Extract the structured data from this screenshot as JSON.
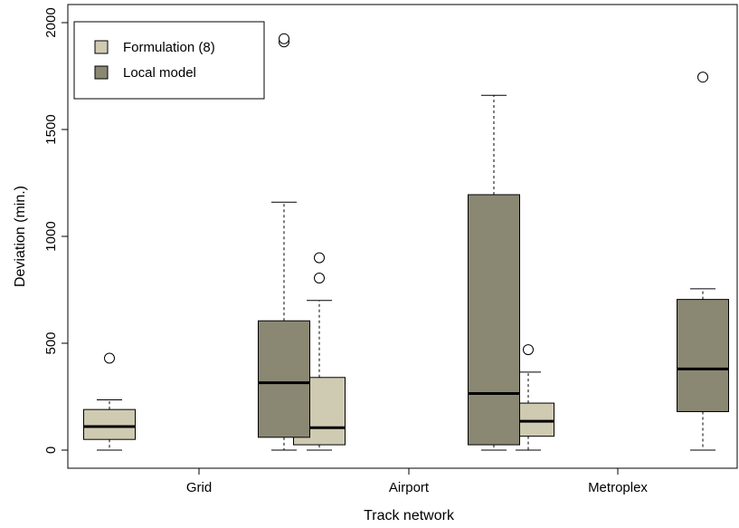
{
  "chart_data": {
    "type": "boxplot",
    "xlabel": "Track network",
    "ylabel": "Deviation (min.)",
    "ylim": [
      -90,
      2050
    ],
    "y_ticks": [
      0,
      500,
      1000,
      1500,
      2000
    ],
    "grid": false,
    "legend_position": "top-left",
    "categories": [
      "Grid",
      "Airport",
      "Metroplex"
    ],
    "series": [
      {
        "name": "Formulation (8)",
        "color": "#cfcab2",
        "boxes": [
          {
            "category": "Grid",
            "whisker_low": 0,
            "q1": 50,
            "median": 110,
            "q3": 190,
            "whisker_high": 235,
            "outliers": [
              430
            ]
          },
          {
            "category": "Airport",
            "whisker_low": 0,
            "q1": 25,
            "median": 105,
            "q3": 340,
            "whisker_high": 700,
            "outliers": [
              805,
              900
            ]
          },
          {
            "category": "Metroplex",
            "whisker_low": 0,
            "q1": 65,
            "median": 135,
            "q3": 220,
            "whisker_high": 365,
            "outliers": [
              470
            ]
          }
        ]
      },
      {
        "name": "Local model",
        "color": "#8a8773",
        "boxes": [
          {
            "category": "Grid",
            "whisker_low": 0,
            "q1": 60,
            "median": 315,
            "q3": 605,
            "whisker_high": 1160,
            "outliers": [
              1910,
              1925
            ]
          },
          {
            "category": "Airport",
            "whisker_low": 0,
            "q1": 25,
            "median": 265,
            "q3": 1195,
            "whisker_high": 1660,
            "outliers": []
          },
          {
            "category": "Metroplex",
            "whisker_low": 0,
            "q1": 180,
            "median": 380,
            "q3": 705,
            "whisker_high": 755,
            "outliers": [
              1745
            ]
          }
        ]
      }
    ]
  }
}
